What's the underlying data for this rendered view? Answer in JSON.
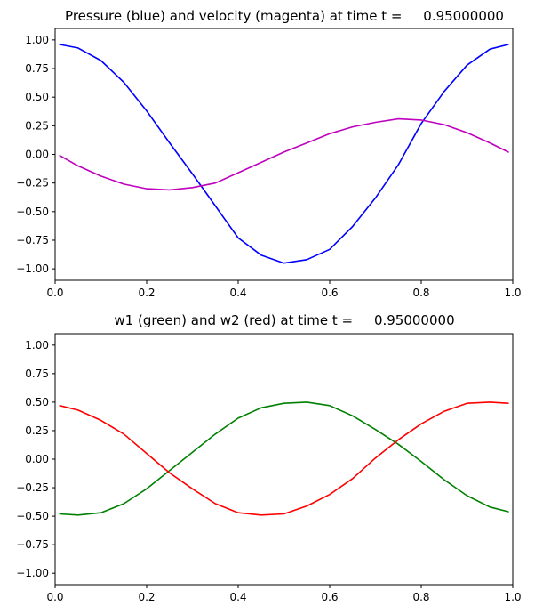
{
  "chart_data": [
    {
      "type": "line",
      "title": "Pressure (blue) and velocity (magenta) at time t =     0.95000000",
      "xlabel": "",
      "ylabel": "",
      "xlim": [
        0.0,
        1.0
      ],
      "ylim": [
        -1.1,
        1.1
      ],
      "xticks": [
        0.0,
        0.2,
        0.4,
        0.6,
        0.8,
        1.0
      ],
      "xtick_labels": [
        "0.0",
        "0.2",
        "0.4",
        "0.6",
        "0.8",
        "1.0"
      ],
      "yticks": [
        1.0,
        0.75,
        0.5,
        0.25,
        0.0,
        -0.25,
        -0.5,
        -0.75,
        -1.0
      ],
      "ytick_labels": [
        "1.00",
        "0.75",
        "0.50",
        "0.25",
        "0.00",
        "−0.25",
        "−0.50",
        "−0.75",
        "−1.00"
      ],
      "grid": false,
      "legend": "none",
      "x": [
        0.01,
        0.05,
        0.1,
        0.15,
        0.2,
        0.25,
        0.3,
        0.35,
        0.4,
        0.45,
        0.5,
        0.55,
        0.6,
        0.65,
        0.7,
        0.75,
        0.8,
        0.85,
        0.9,
        0.95,
        0.99
      ],
      "series": [
        {
          "color": "#0000ff",
          "values": [
            0.96,
            0.93,
            0.82,
            0.63,
            0.38,
            0.1,
            -0.17,
            -0.45,
            -0.73,
            -0.88,
            -0.95,
            -0.92,
            -0.83,
            -0.63,
            -0.38,
            -0.09,
            0.27,
            0.55,
            0.78,
            0.92,
            0.96
          ]
        },
        {
          "color": "#bf00bf",
          "values": [
            -0.01,
            -0.1,
            -0.19,
            -0.26,
            -0.3,
            -0.31,
            -0.29,
            -0.25,
            -0.16,
            -0.07,
            0.02,
            0.1,
            0.18,
            0.24,
            0.28,
            0.31,
            0.3,
            0.26,
            0.19,
            0.1,
            0.02
          ]
        }
      ]
    },
    {
      "type": "line",
      "title": "w1 (green) and w2 (red) at time t =     0.95000000",
      "xlabel": "",
      "ylabel": "",
      "xlim": [
        0.0,
        1.0
      ],
      "ylim": [
        -1.1,
        1.1
      ],
      "xticks": [
        0.0,
        0.2,
        0.4,
        0.6,
        0.8,
        1.0
      ],
      "xtick_labels": [
        "0.0",
        "0.2",
        "0.4",
        "0.6",
        "0.8",
        "1.0"
      ],
      "yticks": [
        1.0,
        0.75,
        0.5,
        0.25,
        0.0,
        -0.25,
        -0.5,
        -0.75,
        -1.0
      ],
      "ytick_labels": [
        "1.00",
        "0.75",
        "0.50",
        "0.25",
        "0.00",
        "−0.25",
        "−0.50",
        "−0.75",
        "−1.00"
      ],
      "grid": false,
      "legend": "none",
      "x": [
        0.01,
        0.05,
        0.1,
        0.15,
        0.2,
        0.25,
        0.3,
        0.35,
        0.4,
        0.45,
        0.5,
        0.55,
        0.6,
        0.65,
        0.7,
        0.75,
        0.8,
        0.85,
        0.9,
        0.95,
        0.99
      ],
      "series": [
        {
          "color": "#008000",
          "values": [
            -0.48,
            -0.49,
            -0.47,
            -0.39,
            -0.26,
            -0.1,
            0.06,
            0.22,
            0.36,
            0.45,
            0.49,
            0.5,
            0.47,
            0.38,
            0.26,
            0.13,
            -0.02,
            -0.18,
            -0.32,
            -0.42,
            -0.46
          ]
        },
        {
          "color": "#ff0000",
          "values": [
            0.47,
            0.43,
            0.34,
            0.22,
            0.05,
            -0.12,
            -0.26,
            -0.39,
            -0.47,
            -0.49,
            -0.48,
            -0.41,
            -0.31,
            -0.17,
            0.01,
            0.17,
            0.31,
            0.42,
            0.49,
            0.5,
            0.49
          ]
        }
      ]
    }
  ]
}
